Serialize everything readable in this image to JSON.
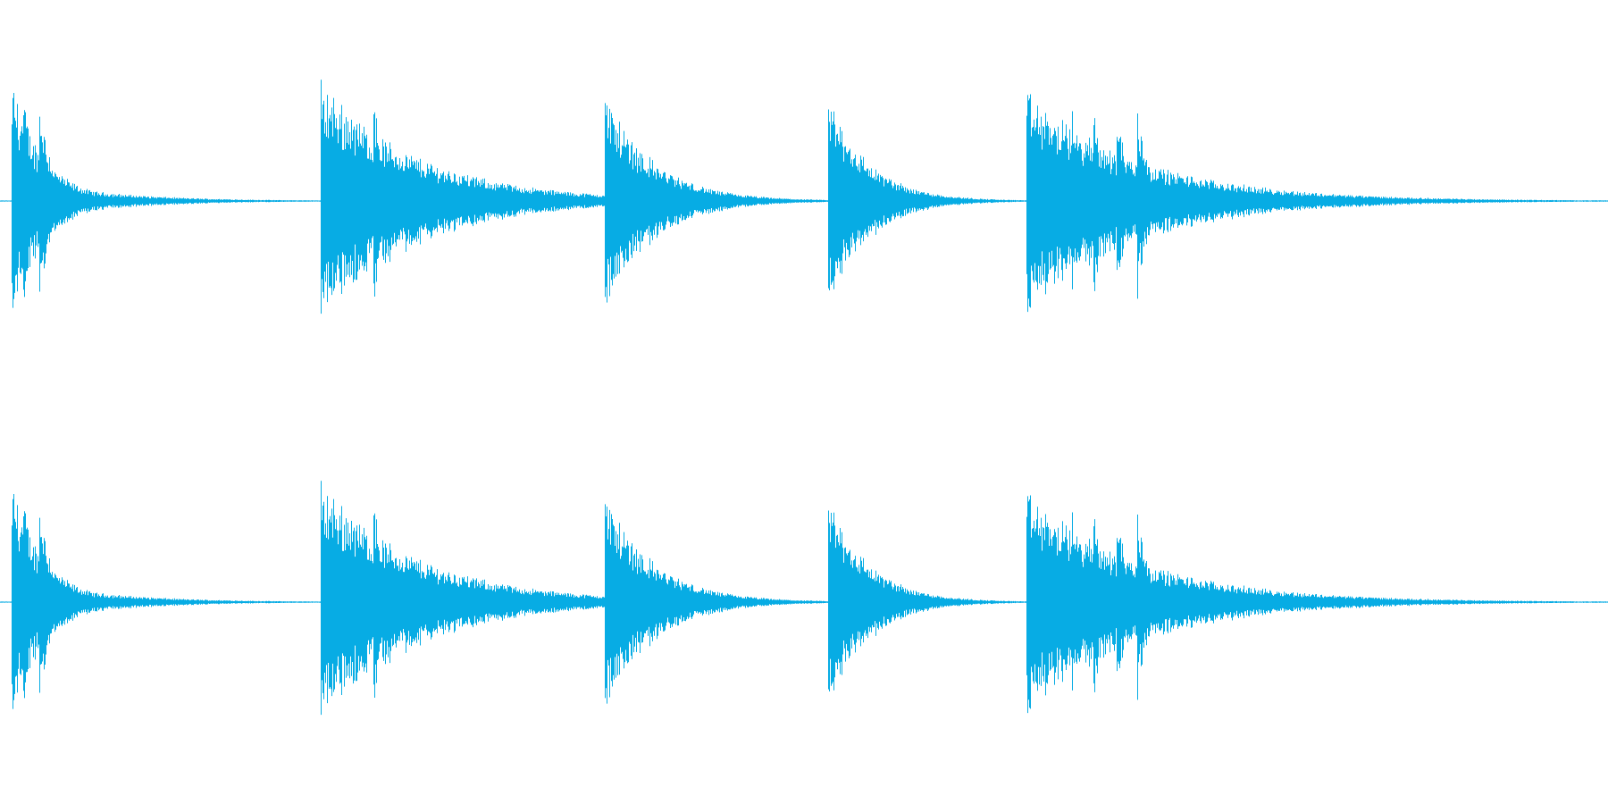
{
  "waveform": {
    "color": "#07ace4",
    "background": "#ffffff",
    "channels": 2,
    "events": [
      {
        "start": 0.007,
        "peak": 0.97,
        "decay": 0.02,
        "bursts": [
          0.014,
          0.024
        ],
        "tail": 0.6
      },
      {
        "start": 0.036,
        "peak": 0.12,
        "decay": 0.05,
        "bursts": [],
        "tail": 0.6
      },
      {
        "start": 0.199,
        "peak": 0.95,
        "decay": 0.06,
        "bursts": [
          0.205,
          0.218,
          0.232
        ],
        "tail": 0.55
      },
      {
        "start": 0.376,
        "peak": 0.86,
        "decay": 0.03,
        "bursts": [],
        "tail": 0.5
      },
      {
        "start": 0.515,
        "peak": 0.84,
        "decay": 0.025,
        "bursts": [],
        "tail": 0.5
      },
      {
        "start": 0.638,
        "peak": 0.86,
        "decay": 0.07,
        "bursts": [
          0.64,
          0.654,
          0.666,
          0.68,
          0.694,
          0.707
        ],
        "tail": 0.5
      }
    ]
  }
}
